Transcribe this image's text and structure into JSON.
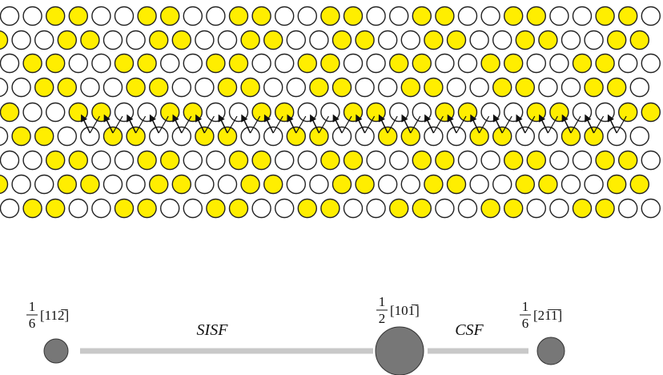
{
  "nodes": [
    {
      "numerator": "1",
      "denominator": "6",
      "direction": "[112̅]"
    },
    {
      "numerator": "1",
      "denominator": "2",
      "direction": "[101̅]"
    },
    {
      "numerator": "1",
      "denominator": "6",
      "direction": "[21̅1̅]"
    }
  ],
  "faults": [
    "SISF",
    "CSF"
  ]
}
